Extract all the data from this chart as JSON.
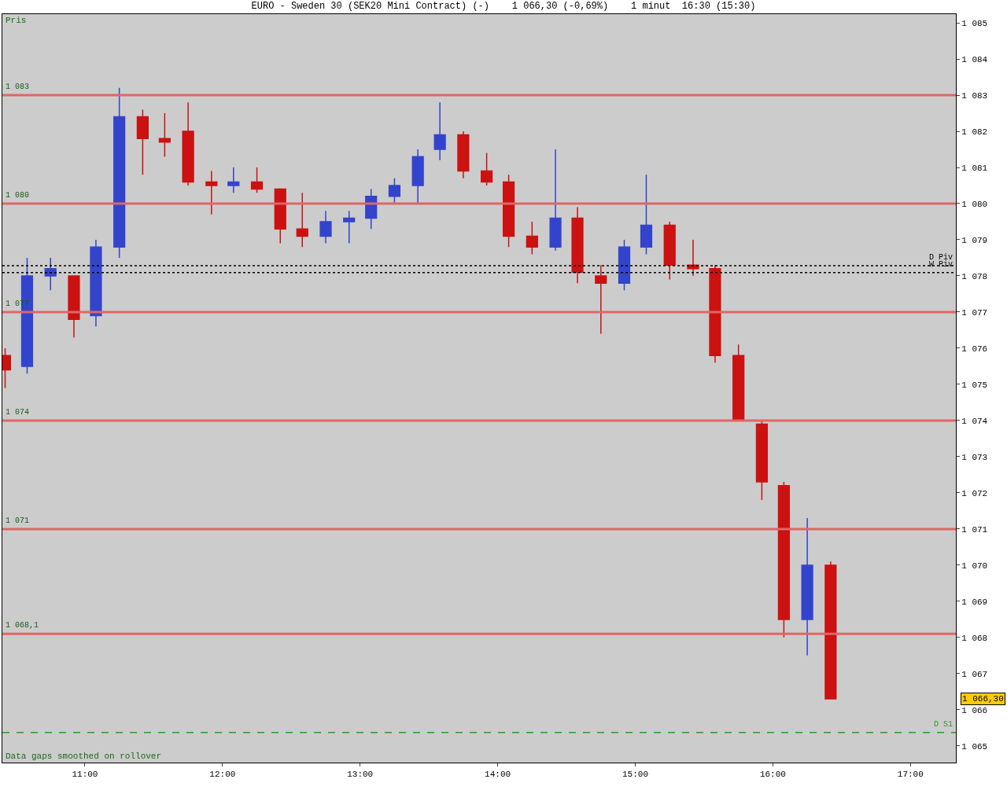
{
  "chart_data": {
    "type": "candlestick",
    "title": "EURO - Sweden 30 (SEK20 Mini Contract) (-)    1 066,30 (-0,69%)    1 minut  16:30 (15:30)",
    "x": [
      10.42,
      10.58,
      10.75,
      10.92,
      11.08,
      11.25,
      11.42,
      11.58,
      11.75,
      11.92,
      12.08,
      12.25,
      12.42,
      12.58,
      12.75,
      12.92,
      13.08,
      13.25,
      13.42,
      13.58,
      13.75,
      13.92,
      14.08,
      14.25,
      14.42,
      14.58,
      14.75,
      14.92,
      15.08,
      15.25,
      15.42,
      15.58,
      15.75,
      15.92,
      16.08,
      16.25,
      16.42
    ],
    "ohlc": [
      [
        1075.8,
        1076.0,
        1074.9,
        1075.4
      ],
      [
        1075.5,
        1078.5,
        1075.3,
        1078.0
      ],
      [
        1078.0,
        1078.5,
        1077.6,
        1078.2
      ],
      [
        1078.0,
        1078.0,
        1076.3,
        1076.8
      ],
      [
        1076.9,
        1079.0,
        1076.6,
        1078.8
      ],
      [
        1078.8,
        1083.2,
        1078.5,
        1082.4
      ],
      [
        1082.4,
        1082.6,
        1080.8,
        1081.8
      ],
      [
        1081.8,
        1082.5,
        1081.3,
        1081.7
      ],
      [
        1082.0,
        1082.8,
        1080.5,
        1080.6
      ],
      [
        1080.6,
        1080.9,
        1079.7,
        1080.5
      ],
      [
        1080.5,
        1081.0,
        1080.3,
        1080.6
      ],
      [
        1080.6,
        1081.0,
        1080.3,
        1080.4
      ],
      [
        1080.4,
        1080.4,
        1078.9,
        1079.3
      ],
      [
        1079.3,
        1080.3,
        1078.8,
        1079.1
      ],
      [
        1079.1,
        1079.8,
        1078.9,
        1079.5
      ],
      [
        1079.5,
        1079.8,
        1078.9,
        1079.6
      ],
      [
        1079.6,
        1080.4,
        1079.3,
        1080.2
      ],
      [
        1080.2,
        1080.7,
        1080.0,
        1080.5
      ],
      [
        1080.5,
        1081.5,
        1080.0,
        1081.3
      ],
      [
        1081.5,
        1082.8,
        1081.2,
        1081.9
      ],
      [
        1081.9,
        1082.0,
        1080.7,
        1080.9
      ],
      [
        1080.9,
        1081.4,
        1080.5,
        1080.6
      ],
      [
        1080.6,
        1080.8,
        1078.8,
        1079.1
      ],
      [
        1079.1,
        1079.5,
        1078.6,
        1078.8
      ],
      [
        1078.8,
        1081.5,
        1078.7,
        1079.6
      ],
      [
        1079.6,
        1079.9,
        1077.8,
        1078.1
      ],
      [
        1078.0,
        1078.3,
        1076.4,
        1077.8
      ],
      [
        1077.8,
        1079.0,
        1077.6,
        1078.8
      ],
      [
        1078.8,
        1080.8,
        1078.6,
        1079.4
      ],
      [
        1079.4,
        1079.5,
        1077.9,
        1078.3
      ],
      [
        1078.3,
        1079.0,
        1078.0,
        1078.2
      ],
      [
        1078.2,
        1078.3,
        1075.6,
        1075.8
      ],
      [
        1075.8,
        1076.1,
        1074.0,
        1074.0
      ],
      [
        1073.9,
        1074.0,
        1071.8,
        1072.3
      ],
      [
        1072.2,
        1072.3,
        1068.0,
        1068.5
      ],
      [
        1068.5,
        1071.3,
        1067.5,
        1070.0
      ],
      [
        1070.0,
        1070.1,
        1066.3,
        1066.3
      ]
    ],
    "colors": [
      "#cc1111",
      "#3344cc",
      "#3344cc",
      "#cc1111",
      "#3344cc",
      "#3344cc",
      "#cc1111",
      "#cc1111",
      "#cc1111",
      "#cc1111",
      "#3344cc",
      "#cc1111",
      "#cc1111",
      "#cc1111",
      "#3344cc",
      "#3344cc",
      "#3344cc",
      "#3344cc",
      "#3344cc",
      "#3344cc",
      "#cc1111",
      "#cc1111",
      "#cc1111",
      "#cc1111",
      "#3344cc",
      "#cc1111",
      "#cc1111",
      "#3344cc",
      "#3344cc",
      "#cc1111",
      "#cc1111",
      "#cc1111",
      "#cc1111",
      "#cc1111",
      "#cc1111",
      "#3344cc",
      "#cc1111"
    ],
    "xlim": [
      10.4,
      17.33
    ],
    "xticks": [
      {
        "value": 11,
        "label": "11:00"
      },
      {
        "value": 12,
        "label": "12:00"
      },
      {
        "value": 13,
        "label": "13:00"
      },
      {
        "value": 14,
        "label": "14:00"
      },
      {
        "value": 15,
        "label": "15:00"
      },
      {
        "value": 16,
        "label": "16:00"
      },
      {
        "value": 17,
        "label": "17:00"
      }
    ],
    "ylim": [
      1064.54,
      1085.24
    ],
    "yticks": [
      {
        "value": 1065,
        "label": "1 065"
      },
      {
        "value": 1066,
        "label": "1 066"
      },
      {
        "value": 1067,
        "label": "1 067"
      },
      {
        "value": 1068,
        "label": "1 068"
      },
      {
        "value": 1069,
        "label": "1 069"
      },
      {
        "value": 1070,
        "label": "1 070"
      },
      {
        "value": 1071,
        "label": "1 071"
      },
      {
        "value": 1072,
        "label": "1 072"
      },
      {
        "value": 1073,
        "label": "1 073"
      },
      {
        "value": 1074,
        "label": "1 074"
      },
      {
        "value": 1075,
        "label": "1 075"
      },
      {
        "value": 1076,
        "label": "1 076"
      },
      {
        "value": 1077,
        "label": "1 077"
      },
      {
        "value": 1078,
        "label": "1 078"
      },
      {
        "value": 1079,
        "label": "1 079"
      },
      {
        "value": 1080,
        "label": "1 080"
      },
      {
        "value": 1081,
        "label": "1 081"
      },
      {
        "value": 1082,
        "label": "1 082"
      },
      {
        "value": 1083,
        "label": "1 083"
      },
      {
        "value": 1084,
        "label": "1 084"
      },
      {
        "value": 1085,
        "label": "1 085"
      }
    ],
    "ref_lines": [
      {
        "axis": "y",
        "value": 1083,
        "label": "1 083",
        "color": "#e06666",
        "line_style": "solid"
      },
      {
        "axis": "y",
        "value": 1080,
        "label": "1 080",
        "color": "#e06666",
        "line_style": "solid"
      },
      {
        "axis": "y",
        "value": 1077,
        "label": "1 077",
        "color": "#e06666",
        "line_style": "solid"
      },
      {
        "axis": "y",
        "value": 1074,
        "label": "1 074",
        "color": "#e06666",
        "line_style": "solid"
      },
      {
        "axis": "y",
        "value": 1071,
        "label": "1 071",
        "color": "#e06666",
        "line_style": "solid"
      },
      {
        "axis": "y",
        "value": 1068.1,
        "label": "1 068,1",
        "color": "#e06666",
        "line_style": "solid"
      },
      {
        "axis": "y",
        "value": 1078.28,
        "label": "D Piv",
        "color": "#000000",
        "line_style": "dotted"
      },
      {
        "axis": "y",
        "value": 1078.09,
        "label": "W Piv",
        "color": "#000000",
        "line_style": "dotted"
      },
      {
        "axis": "y",
        "value": 1065.37,
        "label": "D S1",
        "color": "#2a9a2a",
        "line_style": "dashed"
      }
    ],
    "annotations": [
      "Pris",
      "Data gaps smoothed on rollover",
      "1 066,30"
    ],
    "grid": false
  }
}
